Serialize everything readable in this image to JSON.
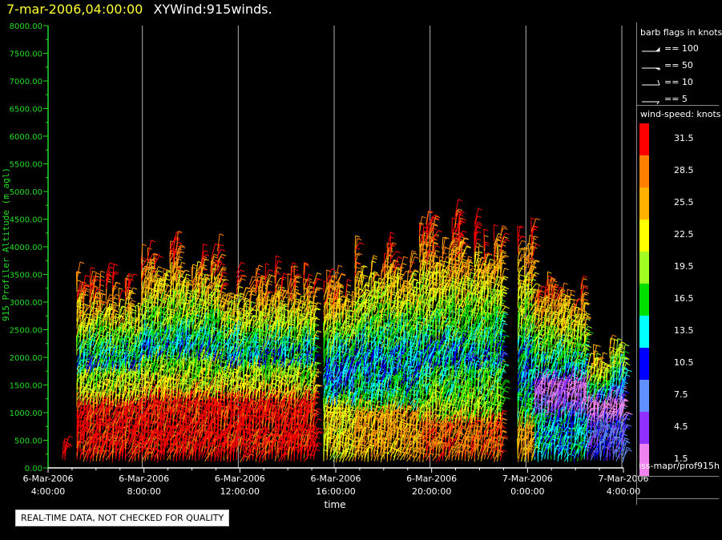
{
  "header": {
    "timestamp": "7-mar-2006,04:00:00",
    "title": "XYWind:915winds."
  },
  "chart_data": {
    "type": "scatter",
    "xlabel": "time",
    "ylabel": "915 Profiler Altitude (m agl)",
    "ylim": [
      0,
      8000
    ],
    "y_ticks": [
      "0.00",
      "500.00",
      "1000.00",
      "1500.00",
      "2000.00",
      "2500.00",
      "3000.00",
      "3500.00",
      "4000.00",
      "4500.00",
      "5000.00",
      "5500.00",
      "6000.00",
      "6500.00",
      "7000.00",
      "7500.00",
      "8000.00"
    ],
    "x_range_hours": [
      4,
      28
    ],
    "x_ticks": [
      {
        "date": "6-Mar-2006",
        "time": "4:00:00",
        "hour": 4
      },
      {
        "date": "6-Mar-2006",
        "time": "8:00:00",
        "hour": 8
      },
      {
        "date": "6-Mar-2006",
        "time": "12:00:00",
        "hour": 12
      },
      {
        "date": "6-Mar-2006",
        "time": "16:00:00",
        "hour": 16
      },
      {
        "date": "6-Mar-2006",
        "time": "20:00:00",
        "hour": 20
      },
      {
        "date": "7-Mar-2006",
        "time": "0:00:00",
        "hour": 24
      },
      {
        "date": "7-Mar-2006",
        "time": "4:00:00",
        "hour": 28
      }
    ],
    "grid_hours": [
      8,
      12,
      16,
      20,
      24,
      28
    ],
    "legend_placement": "right",
    "barb_legend": {
      "title": "barb flags in knots",
      "items": [
        {
          "label": "== 100",
          "kind": "pennant"
        },
        {
          "label": "== 50",
          "kind": "triangle"
        },
        {
          "label": "== 10",
          "kind": "full"
        },
        {
          "label": "== 5",
          "kind": "half"
        }
      ]
    },
    "colorbar": {
      "title": "wind-speed: knots",
      "levels": [
        {
          "value": "31.5",
          "color": "#ff0000"
        },
        {
          "value": "28.5",
          "color": "#ff8000"
        },
        {
          "value": "25.5",
          "color": "#ffb000"
        },
        {
          "value": "22.5",
          "color": "#ffff00"
        },
        {
          "value": "19.5",
          "color": "#a0ff20"
        },
        {
          "value": "16.5",
          "color": "#00e000"
        },
        {
          "value": "13.5",
          "color": "#00ffff"
        },
        {
          "value": "10.5",
          "color": "#0000ff"
        },
        {
          "value": "7.5",
          "color": "#6090ff"
        },
        {
          "value": "4.5",
          "color": "#9030ff"
        },
        {
          "value": "1.5",
          "color": "#ee82ee"
        }
      ]
    },
    "segments": [
      {
        "x0": 4.6,
        "x1": 4.8,
        "top": 400,
        "low": {
          "speed": 31.5,
          "top": 400
        }
      },
      {
        "x0": 5.2,
        "x1": 7.9,
        "top": 3500,
        "low": {
          "speed": 31.5,
          "top": 1100
        }
      },
      {
        "x0": 7.9,
        "x1": 11.2,
        "top": 4100,
        "low": {
          "speed": 31.5,
          "top": 1200
        }
      },
      {
        "x0": 11.2,
        "x1": 15.2,
        "top": 3600,
        "low": {
          "speed": 31.5,
          "top": 1200
        }
      },
      {
        "x0": 15.5,
        "x1": 16.8,
        "top": 3500,
        "low": {
          "speed": 22.5,
          "top": 1100
        }
      },
      {
        "x0": 16.8,
        "x1": 19.5,
        "top": 4200,
        "low": {
          "speed": 25.5,
          "top": 1000
        }
      },
      {
        "x0": 19.5,
        "x1": 23.0,
        "top": 4600,
        "low": {
          "speed": 28.5,
          "top": 800
        }
      },
      {
        "x0": 23.6,
        "x1": 24.3,
        "top": 4400,
        "low": {
          "speed": 25.5,
          "top": 700
        }
      },
      {
        "x0": 24.3,
        "x1": 26.5,
        "top": 3500,
        "low": {
          "speed": 13.5,
          "top": 900
        }
      },
      {
        "x0": 26.5,
        "x1": 28.1,
        "top": 2200,
        "low": {
          "speed": 7.5,
          "top": 800
        }
      }
    ]
  },
  "footer": {
    "path": "iss-mapr/prof915h",
    "note": "REAL-TIME DATA, NOT CHECKED FOR QUALITY"
  }
}
